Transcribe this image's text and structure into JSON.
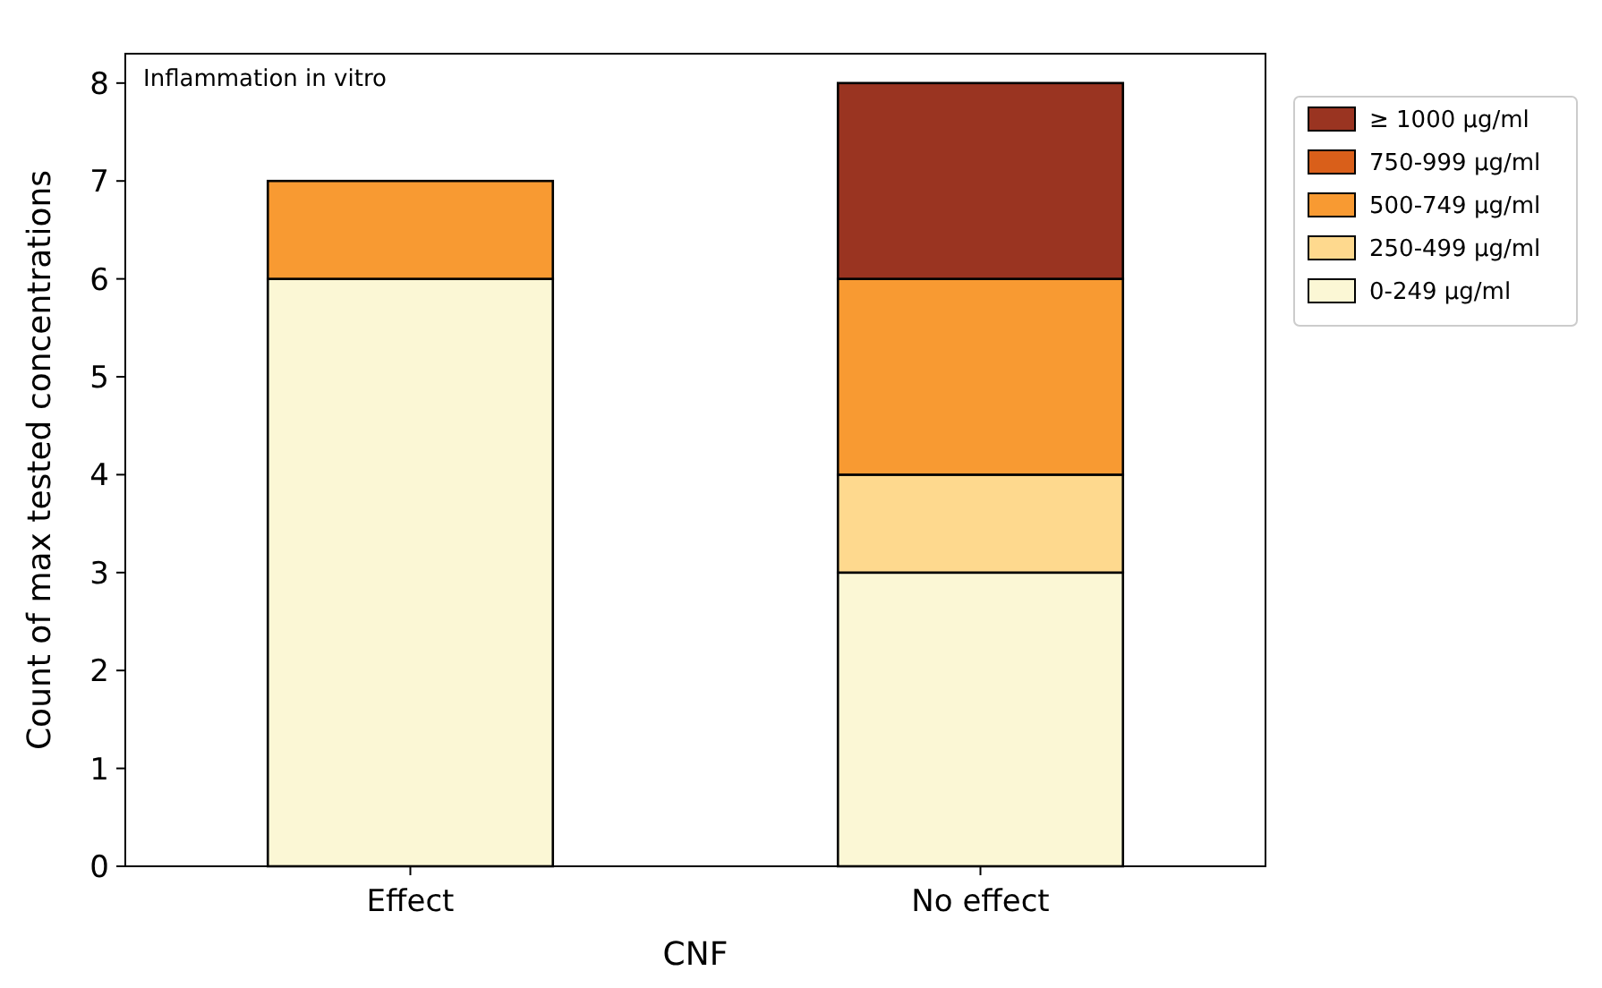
{
  "chart_data": {
    "type": "bar",
    "xlabel": "CNF",
    "ylabel": "Count of max tested concentrations",
    "annotations": [
      "Inflammation in vitro"
    ],
    "categories": [
      "Effect",
      "No effect"
    ],
    "stacked": true,
    "ylim": [
      0,
      8.3
    ],
    "yticks": [
      0,
      1,
      2,
      3,
      4,
      5,
      6,
      7,
      8
    ],
    "legend": "right",
    "grid": false,
    "series": [
      {
        "name": "0-249 µg/ml",
        "color": "#fbf7d5",
        "values": [
          6,
          3
        ]
      },
      {
        "name": "250-499 µg/ml",
        "color": "#fed98e",
        "values": [
          0,
          1
        ]
      },
      {
        "name": "500-749 µg/ml",
        "color": "#f89a32",
        "values": [
          1,
          2
        ]
      },
      {
        "name": "750-999 µg/ml",
        "color": "#d95f1a",
        "values": [
          0,
          0
        ]
      },
      {
        "name": "≥ 1000 µg/ml",
        "color": "#9a3421",
        "values": [
          0,
          2
        ]
      }
    ]
  }
}
